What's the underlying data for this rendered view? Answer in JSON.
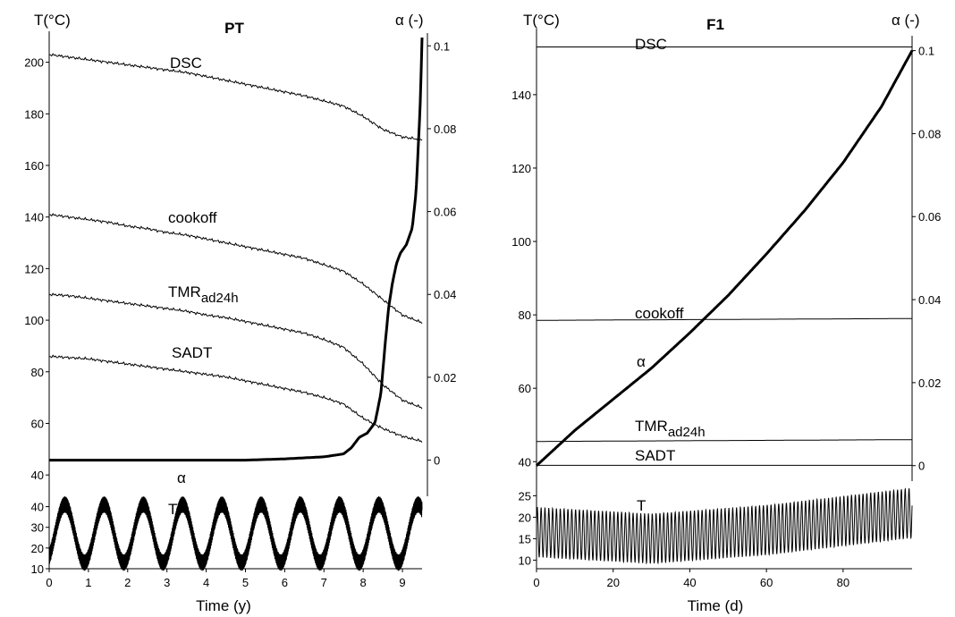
{
  "chart_data": [
    {
      "type": "line",
      "title": "PT",
      "xlabel": "Time (y)",
      "ylabel_left": "T(°C)",
      "ylabel_right": "α (-)",
      "xlim": [
        0,
        9.5
      ],
      "x_ticks": [
        0,
        1,
        2,
        3,
        4,
        5,
        6,
        7,
        8,
        9
      ],
      "y_left_upper": {
        "range": [
          30,
          212
        ],
        "ticks": [
          40,
          60,
          80,
          100,
          120,
          140,
          160,
          180,
          200
        ]
      },
      "y_left_lower": {
        "range": [
          10,
          45
        ],
        "ticks": [
          10,
          20,
          30,
          40
        ]
      },
      "y_right": {
        "range": [
          -0.007,
          0.102
        ],
        "ticks": [
          0,
          0.02,
          0.04,
          0.06,
          0.08,
          0.1
        ],
        "tick_labels": [
          "0",
          "0.02",
          "0.04",
          "0.06",
          "0.08",
          "0.1"
        ]
      },
      "series": [
        {
          "name": "DSC",
          "label": "DSC",
          "axis": "left",
          "x": [
            0,
            0.5,
            1,
            1.5,
            2,
            2.5,
            3,
            3.5,
            4,
            4.5,
            5,
            5.5,
            6,
            6.5,
            7,
            7.5,
            8,
            8.5,
            9,
            9.5
          ],
          "y": [
            203,
            202,
            201,
            200,
            199,
            198,
            197,
            196,
            194.5,
            193,
            191.5,
            190,
            188.5,
            187,
            185,
            183,
            179,
            174,
            171,
            170
          ]
        },
        {
          "name": "cookoff",
          "label": "cookoff",
          "axis": "left",
          "x": [
            0,
            0.5,
            1,
            1.5,
            2,
            2.5,
            3,
            3.5,
            4,
            4.5,
            5,
            5.5,
            6,
            6.5,
            7,
            7.5,
            8,
            8.5,
            9,
            9.5
          ],
          "y": [
            141,
            140,
            139,
            138,
            136.5,
            135.5,
            134,
            133,
            131.5,
            130,
            128.5,
            127,
            125.5,
            124,
            121.5,
            119,
            114,
            108,
            102,
            99
          ]
        },
        {
          "name": "TMRad24h",
          "label": "TMR",
          "label_sub": "ad24h",
          "axis": "left",
          "x": [
            0,
            0.5,
            1,
            1.5,
            2,
            2.5,
            3,
            3.5,
            4,
            4.5,
            5,
            5.5,
            6,
            6.5,
            7,
            7.5,
            8,
            8.5,
            9,
            9.5
          ],
          "y": [
            110,
            109.5,
            108.5,
            107.5,
            106.5,
            105.5,
            104.5,
            103.5,
            102,
            101,
            99.5,
            98,
            96.5,
            95,
            92.5,
            89.5,
            83,
            75,
            69,
            66
          ]
        },
        {
          "name": "SADT",
          "label": "SADT",
          "axis": "left",
          "x": [
            0,
            0.5,
            1,
            1.5,
            2,
            2.5,
            3,
            3.5,
            4,
            4.5,
            5,
            5.5,
            6,
            6.5,
            7,
            7.5,
            8,
            8.5,
            9,
            9.5
          ],
          "y": [
            86,
            85.5,
            85,
            84,
            83,
            82,
            81,
            80,
            79,
            78,
            76.5,
            75,
            73.5,
            72,
            70,
            67.5,
            62,
            58,
            55,
            53
          ]
        },
        {
          "name": "alpha",
          "label": "α",
          "axis": "right",
          "x": [
            0,
            5,
            6,
            7,
            7.5,
            7.7,
            7.9,
            8.1,
            8.3,
            8.45,
            8.55,
            8.65,
            8.75,
            8.85,
            8.95,
            9.1,
            9.25,
            9.35,
            9.45,
            9.5
          ],
          "y": [
            0,
            0,
            0.0003,
            0.0008,
            0.0015,
            0.003,
            0.0055,
            0.0065,
            0.009,
            0.016,
            0.027,
            0.037,
            0.043,
            0.0475,
            0.05,
            0.052,
            0.056,
            0.065,
            0.085,
            0.102
          ]
        },
        {
          "name": "T",
          "label": "T",
          "axis": "left_lower",
          "kind": "oscillation",
          "period": 1,
          "mean": 27,
          "amplitude": 14,
          "daily_swing": 4,
          "phase_peak": 0.4
        }
      ]
    },
    {
      "type": "line",
      "title": "F1",
      "xlabel": "Time (d)",
      "ylabel_left": "T(°C)",
      "ylabel_right": "α (-)",
      "xlim": [
        0,
        98
      ],
      "x_ticks": [
        0,
        20,
        40,
        60,
        80
      ],
      "y_left_upper": {
        "range": [
          33,
          158
        ],
        "ticks": [
          40,
          60,
          80,
          100,
          120,
          140
        ]
      },
      "y_left_lower": {
        "range": [
          8,
          28
        ],
        "ticks": [
          10,
          15,
          20,
          25
        ]
      },
      "y_right": {
        "range": [
          -0.002,
          0.1025
        ],
        "ticks": [
          0,
          0.02,
          0.04,
          0.06,
          0.08,
          0.1
        ],
        "tick_labels": [
          "0",
          "0.02",
          "0.04",
          "0.06",
          "0.08",
          "0.1"
        ]
      },
      "series": [
        {
          "name": "DSC",
          "label": "DSC",
          "axis": "left",
          "x": [
            0,
            98
          ],
          "y": [
            153,
            153
          ]
        },
        {
          "name": "cookoff",
          "label": "cookoff",
          "axis": "left",
          "x": [
            0,
            98
          ],
          "y": [
            78.5,
            79
          ]
        },
        {
          "name": "TMRad24h",
          "label": "TMR",
          "label_sub": "ad24h",
          "axis": "left",
          "x": [
            0,
            98
          ],
          "y": [
            45.5,
            46
          ]
        },
        {
          "name": "SADT",
          "label": "SADT",
          "axis": "left",
          "x": [
            0,
            98
          ],
          "y": [
            39,
            39
          ]
        },
        {
          "name": "alpha",
          "label": "α",
          "axis": "right",
          "x": [
            0,
            10,
            20,
            30,
            40,
            50,
            60,
            70,
            80,
            90,
            98
          ],
          "y": [
            0,
            0.0085,
            0.016,
            0.0235,
            0.032,
            0.041,
            0.051,
            0.0615,
            0.073,
            0.0865,
            0.1
          ]
        },
        {
          "name": "T",
          "label": "T",
          "axis": "left_lower",
          "kind": "oscillation",
          "period": 1,
          "mean_x": [
            0,
            30,
            60,
            98
          ],
          "mean_y": [
            16.5,
            15,
            17,
            21
          ],
          "amplitude": 5.8
        }
      ]
    }
  ]
}
